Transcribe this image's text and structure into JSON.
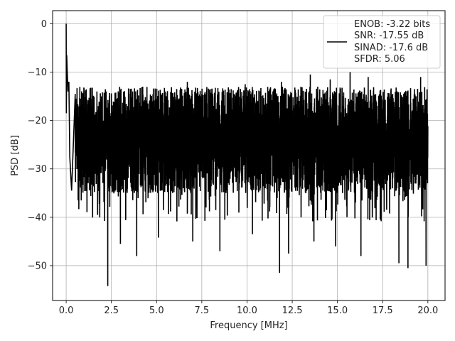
{
  "chart_data": {
    "type": "line",
    "xlabel": "Frequency [MHz]",
    "ylabel": "PSD [dB]",
    "xlim": [
      -0.75,
      20.95
    ],
    "ylim": [
      -57.2,
      2.7
    ],
    "xticks": [
      0.0,
      2.5,
      5.0,
      7.5,
      10.0,
      12.5,
      15.0,
      17.5,
      20.0
    ],
    "xtick_labels": [
      "0.0",
      "2.5",
      "5.0",
      "7.5",
      "10.0",
      "12.5",
      "15.0",
      "17.5",
      "20.0"
    ],
    "yticks": [
      0,
      -10,
      -20,
      -30,
      -40,
      -50
    ],
    "ytick_labels": [
      "0",
      "−10",
      "−20",
      "−30",
      "−40",
      "−50"
    ],
    "grid": true,
    "legend": {
      "position": "top-right",
      "lines": [
        "ENOB: -3.22 bits",
        "SNR: -17.55 dB",
        "SINAD: -17.6 dB",
        "SFDR: 5.06"
      ]
    },
    "series": [
      {
        "color": "#000000",
        "noise_floor_range": [
          -35,
          -13
        ],
        "x": [
          0.0,
          0.01,
          0.03,
          0.06,
          0.1,
          0.15,
          0.2,
          0.3,
          0.5,
          2.3,
          3.0,
          3.9,
          5.1,
          6.7,
          7.0,
          8.5,
          9.9,
          10.3,
          11.8,
          11.9,
          12.3,
          13.5,
          13.7,
          14.6,
          14.9,
          15.7,
          16.3,
          16.7,
          18.4,
          18.9,
          19.6,
          19.9,
          20.0
        ],
        "y": [
          0.0,
          -18.5,
          -6.5,
          -10.0,
          -14.0,
          -12.0,
          -27.5,
          -34.5,
          -14.5,
          -54.2,
          -45.5,
          -48.0,
          -44.2,
          -12.0,
          -45.0,
          -47.0,
          -12.5,
          -43.5,
          -51.5,
          -12.0,
          -47.5,
          -10.5,
          -45.0,
          -11.5,
          -46.0,
          -10.0,
          -48.0,
          -11.0,
          -49.5,
          -50.5,
          -11.0,
          -50.0,
          -22.0
        ]
      }
    ]
  }
}
